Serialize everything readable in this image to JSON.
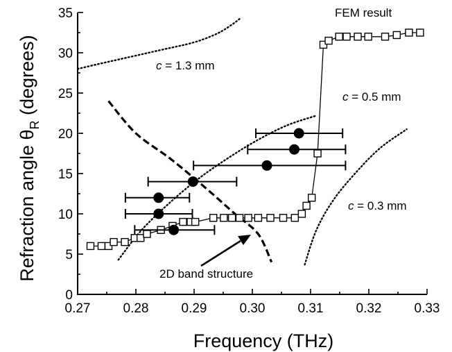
{
  "chart_data": {
    "type": "scatter",
    "xlabel": "Frequency (THz)",
    "ylabel_main": "Refraction angle θ",
    "ylabel_sub": "R",
    "ylabel_tail": " (degrees)",
    "xlim": [
      0.27,
      0.33
    ],
    "ylim": [
      0,
      35
    ],
    "x_ticks": [
      0.27,
      0.28,
      0.29,
      0.3,
      0.31,
      0.32,
      0.33
    ],
    "x_tick_labels": [
      "0.27",
      "0.28",
      "0.29",
      "0.30",
      "0.31",
      "0.32",
      "0.33"
    ],
    "y_ticks": [
      0,
      5,
      10,
      15,
      20,
      25,
      30,
      35
    ],
    "y_tick_labels": [
      "0",
      "5",
      "10",
      "15",
      "20",
      "25",
      "30",
      "35"
    ],
    "grid": false,
    "annotations": {
      "fem": "FEM result",
      "band": "2D band structure",
      "c13_var": "c",
      "c13_val": " = 1.3 mm",
      "c05_var": "c",
      "c05_val": " = 0.5 mm",
      "c03_var": "c",
      "c03_val": " = 0.3 mm"
    },
    "series": [
      {
        "marker": "open-square",
        "points": [
          [
            0.2722,
            6.0
          ],
          [
            0.2741,
            6.0
          ],
          [
            0.2753,
            6.0
          ],
          [
            0.2762,
            6.5
          ],
          [
            0.2781,
            6.5
          ],
          [
            0.2798,
            7.0
          ],
          [
            0.2808,
            7.0
          ],
          [
            0.2819,
            7.5
          ],
          [
            0.2843,
            8.0
          ],
          [
            0.2863,
            8.5
          ],
          [
            0.2881,
            9.0
          ],
          [
            0.2894,
            9.0
          ],
          [
            0.2902,
            9.0
          ],
          [
            0.2933,
            9.5
          ],
          [
            0.2951,
            9.5
          ],
          [
            0.2965,
            9.5
          ],
          [
            0.2978,
            9.5
          ],
          [
            0.2993,
            9.5
          ],
          [
            0.301,
            9.5
          ],
          [
            0.3031,
            9.5
          ],
          [
            0.3053,
            9.5
          ],
          [
            0.3073,
            9.5
          ],
          [
            0.3085,
            10.0
          ],
          [
            0.3093,
            11.0
          ],
          [
            0.3102,
            12.0
          ],
          [
            0.3112,
            17.5
          ],
          [
            0.3122,
            31.0
          ],
          [
            0.3131,
            31.5
          ],
          [
            0.3149,
            32.0
          ],
          [
            0.3162,
            32.0
          ],
          [
            0.3181,
            32.0
          ],
          [
            0.3199,
            32.0
          ],
          [
            0.3228,
            32.0
          ],
          [
            0.3248,
            32.2
          ],
          [
            0.3269,
            32.5
          ],
          [
            0.3288,
            32.5
          ]
        ]
      },
      {
        "marker": "filled-circle",
        "points": [
          {
            "x": 0.2865,
            "y": 8.0,
            "xerr": [
              0.2798,
              0.2935
            ]
          },
          {
            "x": 0.2839,
            "y": 10.0,
            "xerr": [
              0.2782,
              0.2897
            ]
          },
          {
            "x": 0.2839,
            "y": 12.0,
            "xerr": [
              0.2782,
              0.2892
            ]
          },
          {
            "x": 0.2898,
            "y": 14.0,
            "xerr": [
              0.2821,
              0.2973
            ]
          },
          {
            "x": 0.3025,
            "y": 16.0,
            "xerr": [
              0.2899,
              0.316
            ]
          },
          {
            "x": 0.3072,
            "y": 18.0,
            "xerr": [
              0.2992,
              0.316
            ]
          },
          {
            "x": 0.308,
            "y": 20.0,
            "xerr": [
              0.3006,
              0.3155
            ]
          }
        ]
      }
    ],
    "lines": [
      {
        "style": "dashed",
        "points": [
          [
            0.2753,
            24.0
          ],
          [
            0.28,
            20.0
          ],
          [
            0.286,
            16.8
          ],
          [
            0.292,
            13.2
          ],
          [
            0.297,
            10.0
          ],
          [
            0.301,
            7.5
          ],
          [
            0.3033,
            4.0
          ]
        ]
      },
      {
        "style": "dotted",
        "points": [
          [
            0.27,
            28.0
          ],
          [
            0.276,
            29.0
          ],
          [
            0.284,
            30.3
          ],
          [
            0.29,
            31.3
          ],
          [
            0.294,
            32.4
          ],
          [
            0.2965,
            33.5
          ],
          [
            0.2978,
            34.2
          ]
        ]
      },
      {
        "style": "dotted",
        "points": [
          [
            0.277,
            4.3
          ],
          [
            0.281,
            8.0
          ],
          [
            0.286,
            11.5
          ],
          [
            0.291,
            14.5
          ],
          [
            0.296,
            17.0
          ],
          [
            0.301,
            19.2
          ],
          [
            0.306,
            21.0
          ],
          [
            0.311,
            22.2
          ]
        ]
      },
      {
        "style": "dotted",
        "points": [
          [
            0.309,
            3.7
          ],
          [
            0.311,
            8.0
          ],
          [
            0.314,
            11.8
          ],
          [
            0.318,
            15.3
          ],
          [
            0.322,
            18.2
          ],
          [
            0.3265,
            20.5
          ]
        ]
      }
    ]
  }
}
